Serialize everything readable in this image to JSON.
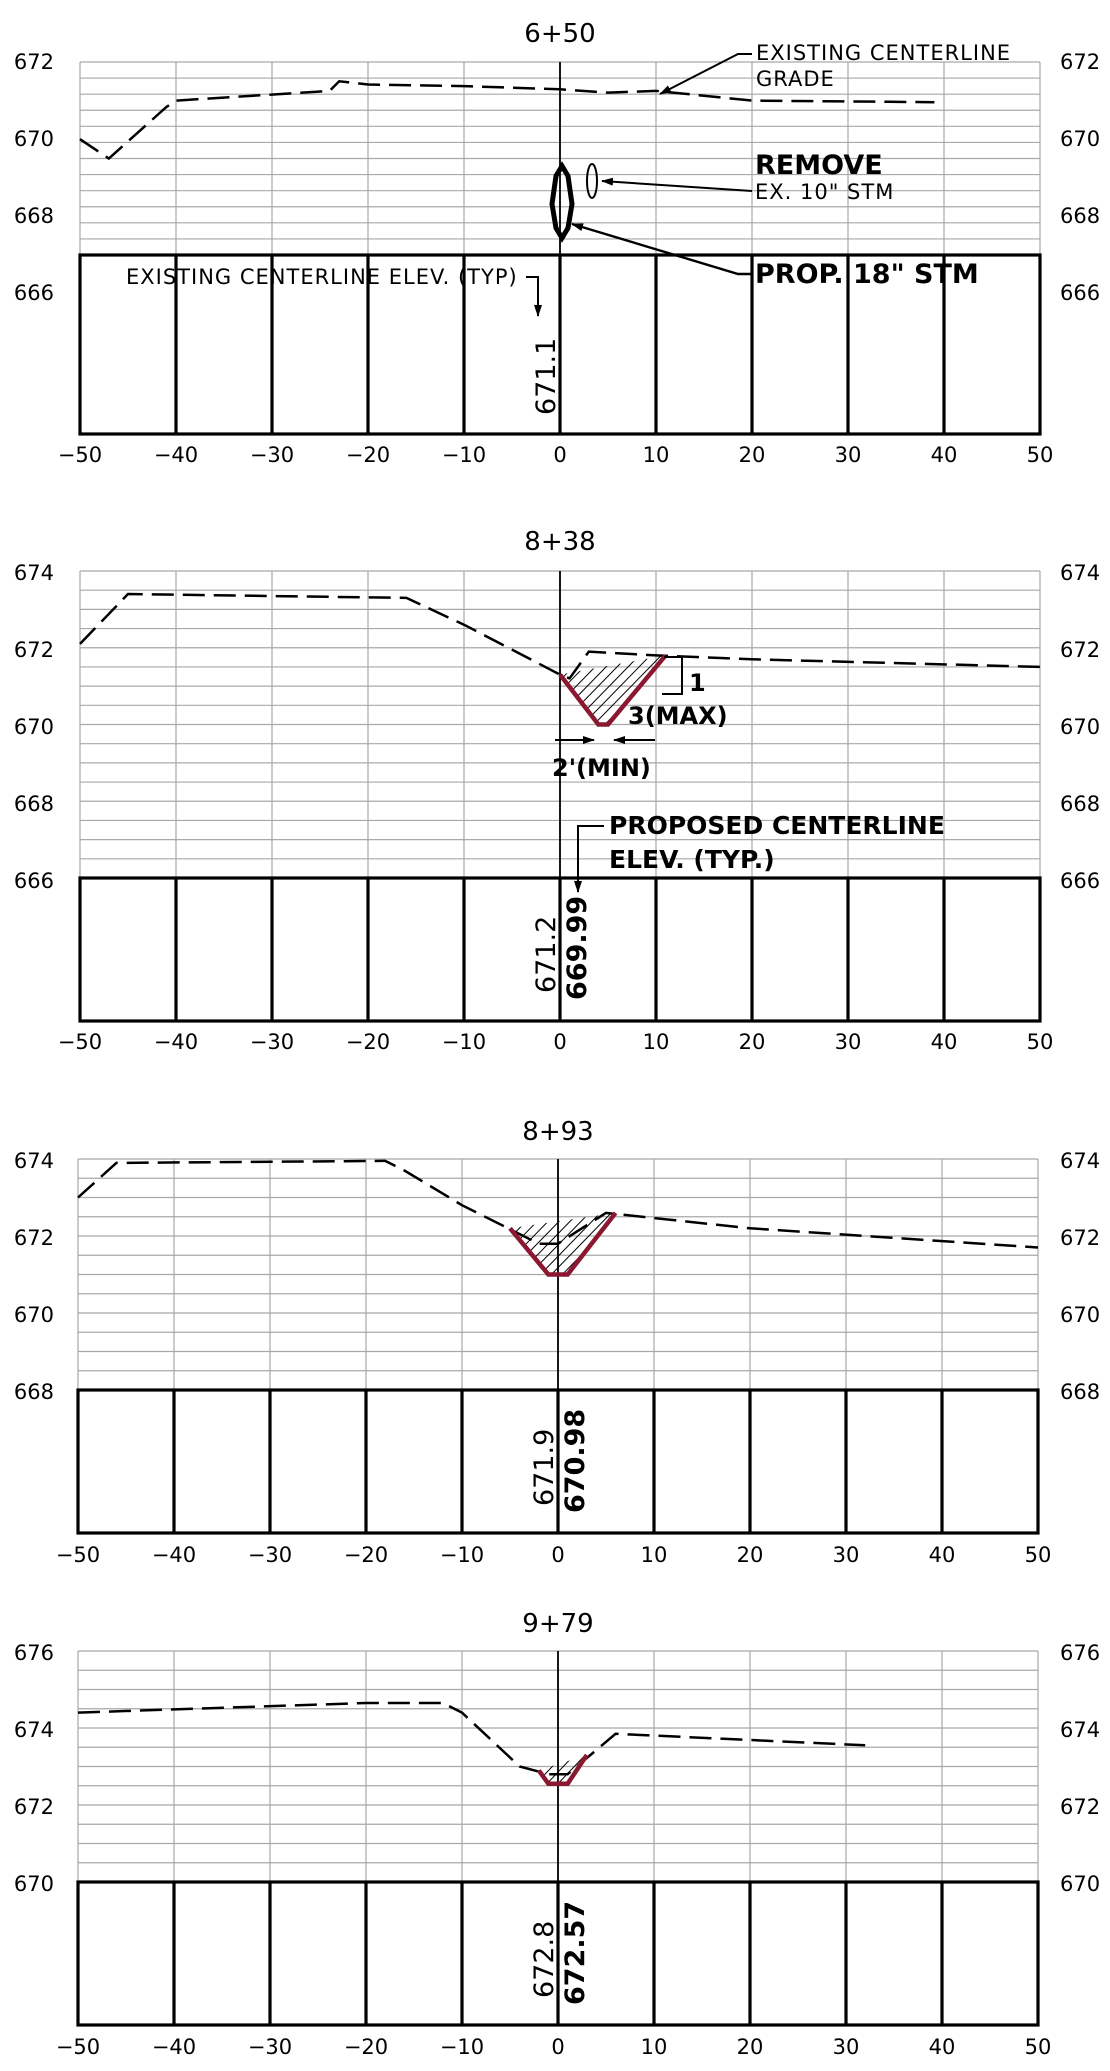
{
  "sections": [
    {
      "station": "6+50",
      "y_ticks": [
        "672",
        "670",
        "668",
        "666"
      ],
      "x_ticks": [
        "−50",
        "−40",
        "−30",
        "−20",
        "−10",
        "0",
        "10",
        "20",
        "30",
        "40",
        "50"
      ],
      "existing_elev": "671.1",
      "proposed_elev": "",
      "existing_grade": [
        [
          -50,
          669.6
        ],
        [
          -47,
          669.0
        ],
        [
          -41,
          670.6
        ],
        [
          -40,
          670.8
        ],
        [
          -24,
          671.1
        ],
        [
          -23,
          671.4
        ],
        [
          -20,
          671.3
        ],
        [
          -10,
          671.25
        ],
        [
          0,
          671.15
        ],
        [
          5,
          671.05
        ],
        [
          10,
          671.1
        ],
        [
          20,
          670.8
        ],
        [
          39,
          670.75
        ]
      ],
      "ditch": [],
      "hatch": false,
      "callouts": {
        "grade_line1": "EXISTING CENTERLINE",
        "grade_line2": "GRADE",
        "remove": "REMOVE",
        "remove_sub": "EX. 10\" STM",
        "prop": "PROP. 18\" STM",
        "existing_elev_note": "EXISTING CENTERLINE ELEV. (TYP)"
      }
    },
    {
      "station": "8+38",
      "y_ticks": [
        "674",
        "672",
        "670",
        "668",
        "666"
      ],
      "x_ticks": [
        "−50",
        "−40",
        "−30",
        "−20",
        "−10",
        "0",
        "10",
        "20",
        "30",
        "40",
        "50"
      ],
      "existing_elev": "671.2",
      "proposed_elev": "669.99",
      "existing_grade": [
        [
          -50,
          672.1
        ],
        [
          -45,
          673.4
        ],
        [
          -16,
          673.3
        ],
        [
          -10,
          672.6
        ],
        [
          0,
          671.3
        ],
        [
          1,
          671.2
        ],
        [
          3,
          671.9
        ],
        [
          10,
          671.8
        ],
        [
          20,
          671.7
        ],
        [
          50,
          671.5
        ]
      ],
      "ditch": [
        [
          0,
          671.3
        ],
        [
          4,
          670.0
        ],
        [
          5,
          670.0
        ],
        [
          11,
          671.8
        ]
      ],
      "hatch": true,
      "callouts": {
        "slope_rise": "1",
        "slope_run": "3(MAX)",
        "bottom_width": "2'(MIN)",
        "proposed_line1": "PROPOSED CENTERLINE",
        "proposed_line2": "ELEV. (TYP.)"
      }
    },
    {
      "station": "8+93",
      "y_ticks": [
        "674",
        "672",
        "670",
        "668"
      ],
      "x_ticks": [
        "−50",
        "−40",
        "−30",
        "−20",
        "−10",
        "0",
        "10",
        "20",
        "30",
        "40",
        "50"
      ],
      "existing_elev": "671.9",
      "proposed_elev": "670.98",
      "existing_grade": [
        [
          -50,
          673.0
        ],
        [
          -46,
          673.9
        ],
        [
          -18,
          673.95
        ],
        [
          -16,
          673.7
        ],
        [
          -10,
          672.8
        ],
        [
          -2,
          671.8
        ],
        [
          0,
          671.8
        ],
        [
          5,
          672.6
        ],
        [
          20,
          672.2
        ],
        [
          50,
          671.7
        ]
      ],
      "ditch": [
        [
          -5,
          672.2
        ],
        [
          -1,
          671.0
        ],
        [
          1,
          671.0
        ],
        [
          6,
          672.6
        ]
      ],
      "hatch": true,
      "callouts": {}
    },
    {
      "station": "9+79",
      "y_ticks": [
        "676",
        "674",
        "672",
        "670"
      ],
      "x_ticks": [
        "−50",
        "−40",
        "−30",
        "−20",
        "−10",
        "0",
        "10",
        "20",
        "30",
        "40",
        "50"
      ],
      "existing_elev": "672.8",
      "proposed_elev": "672.57",
      "existing_grade": [
        [
          -50,
          674.4
        ],
        [
          -20,
          674.65
        ],
        [
          -12,
          674.65
        ],
        [
          -10,
          674.4
        ],
        [
          -4,
          673.0
        ],
        [
          -1,
          672.8
        ],
        [
          1,
          672.8
        ],
        [
          6,
          673.85
        ],
        [
          32,
          673.55
        ]
      ],
      "ditch": [
        [
          -2,
          672.9
        ],
        [
          -1,
          672.55
        ],
        [
          1,
          672.55
        ],
        [
          3,
          673.3
        ]
      ],
      "hatch": true,
      "callouts": {}
    }
  ],
  "colors": {
    "grid": "#a8a8a8",
    "line": "#000000",
    "ditch": "#8b1830"
  }
}
